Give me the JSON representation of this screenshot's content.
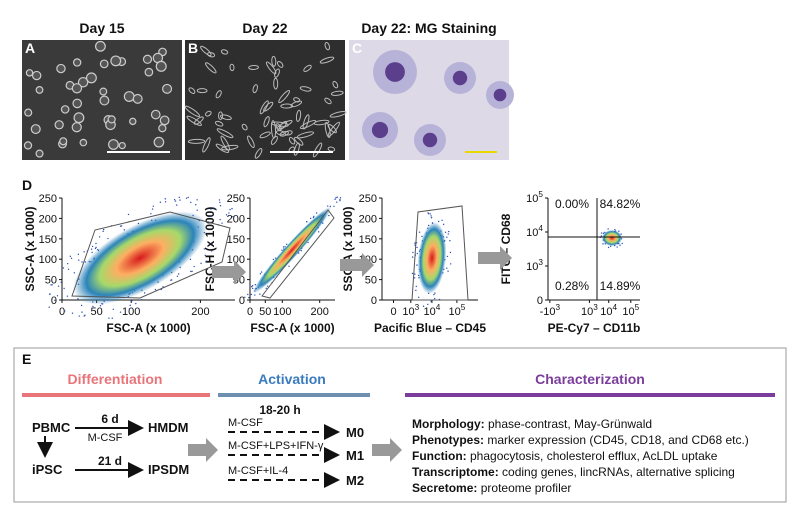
{
  "panels": [
    {
      "letter": "A",
      "title": "Day 15"
    },
    {
      "letter": "B",
      "title": "Day 22"
    },
    {
      "letter": "C",
      "title": "Day 22: MG Staining"
    }
  ],
  "flow": {
    "letter": "D",
    "plots": [
      {
        "y_label": "SSC-A (x 1000)",
        "x_label": "FSC-A (x 1000)",
        "y_ticks": [
          "250",
          "200",
          "150",
          "100",
          "50",
          "0"
        ],
        "x_ticks": [
          "0",
          "50",
          "100",
          "200"
        ]
      },
      {
        "y_label": "FSC-H (x 1000)",
        "x_label": "FSC-A (x 1000)",
        "y_ticks": [
          "250",
          "200",
          "150",
          "100",
          "50",
          "0"
        ],
        "x_ticks": [
          "0",
          "50",
          "100",
          "200"
        ]
      },
      {
        "y_label": "SSC-A (x 1000)",
        "x_label": "Pacific Blue – CD45",
        "y_ticks": [
          "250",
          "200",
          "150",
          "100",
          "50",
          "0"
        ],
        "x_ticks": [
          "0",
          {
            "base": "10",
            "exp": "3"
          },
          {
            "base": "10",
            "exp": "4"
          },
          {
            "base": "10",
            "exp": "5"
          }
        ]
      },
      {
        "y_label": "FITC – CD68",
        "x_label": "PE-Cy7 – CD11b",
        "y_ticks": [
          {
            "base": "10",
            "exp": "5"
          },
          {
            "base": "10",
            "exp": "4"
          },
          {
            "base": "10",
            "exp": "3"
          },
          "0"
        ],
        "x_ticks": [
          {
            "base": "-10",
            "exp": "3"
          },
          {
            "base": "10",
            "exp": "3"
          },
          {
            "base": "10",
            "exp": "4"
          },
          {
            "base": "10",
            "exp": "5"
          }
        ],
        "quadrants": [
          "0.00%",
          "84.82%",
          "0.28%",
          "14.89%"
        ]
      }
    ]
  },
  "workflow": {
    "letter": "E",
    "differentiation": {
      "title": "Differentiation",
      "routes": [
        {
          "source": "PBMC",
          "time": "6 d",
          "factor": "M-CSF",
          "product": "HMDM"
        },
        {
          "source": "iPSC",
          "time": "21 d",
          "product": "IPSDM"
        }
      ]
    },
    "activation": {
      "title": "Activation",
      "time": "18-20 h",
      "conditions": [
        {
          "treatment": "M-CSF",
          "result": "M0"
        },
        {
          "treatment": "M-CSF+LPS+IFN-γ",
          "result": "M1"
        },
        {
          "treatment": "M-CSF+IL-4",
          "result": "M2"
        }
      ]
    },
    "characterization": {
      "title": "Characterization",
      "items": [
        {
          "label": "Morphology:",
          "text": "phase-contrast, May-Grünwald"
        },
        {
          "label": "Phenotypes:",
          "text": "marker expression (CD45, CD18, and CD68 etc.)"
        },
        {
          "label": "Function:",
          "text": "phagocytosis, cholesterol efflux, AcLDL uptake"
        },
        {
          "label": "Transcriptome:",
          "text": "coding genes, lincRNAs, alternative splicing"
        },
        {
          "label": "Secretome:",
          "text": "proteome profiler"
        }
      ]
    }
  }
}
